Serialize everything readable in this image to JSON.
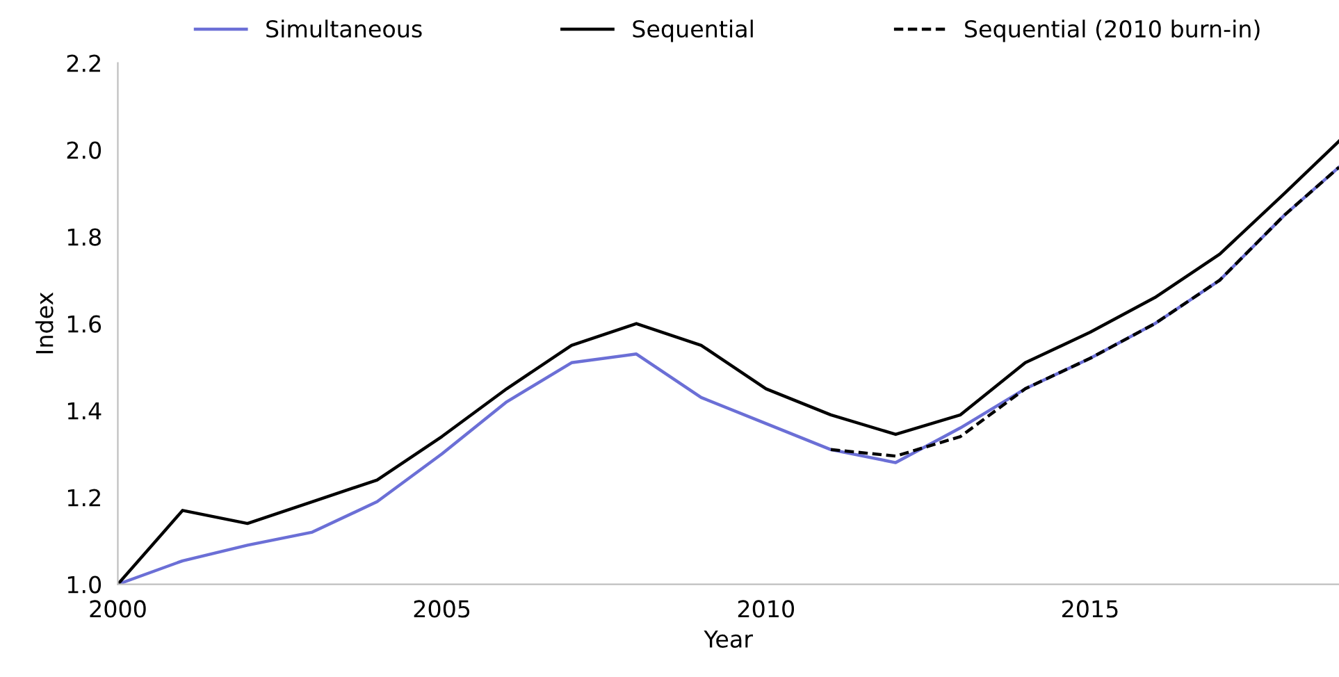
{
  "chart_data": {
    "type": "line",
    "xlabel": "Year",
    "ylabel": "Index",
    "xlim": [
      2000,
      2018.84
    ],
    "xticks": [
      2000,
      2005,
      2010,
      2015
    ],
    "ylim": [
      1.0,
      2.2
    ],
    "yticks": [
      {
        "value": 1.0,
        "label": "1.0"
      },
      {
        "value": 1.2,
        "label": "1.2"
      },
      {
        "value": 1.4,
        "label": "1.4"
      },
      {
        "value": 1.6,
        "label": "1.6"
      },
      {
        "value": 1.8,
        "label": "1.8"
      },
      {
        "value": 2.0,
        "label": "2.0"
      },
      {
        "value": 2.2,
        "label": "2.2"
      }
    ],
    "grid": false,
    "legend": "top",
    "marker": "none",
    "series": [
      {
        "name": "Simultaneous",
        "color": "#6b6fd6",
        "line_style": "solid",
        "x": [
          2000,
          2001,
          2002,
          2003,
          2004,
          2005,
          2006,
          2007,
          2008,
          2009,
          2010,
          2011,
          2012,
          2013,
          2014,
          2015,
          2016,
          2017,
          2018,
          2018.84
        ],
        "values": [
          1.0,
          1.054,
          1.09,
          1.12,
          1.19,
          1.3,
          1.42,
          1.51,
          1.53,
          1.43,
          1.37,
          1.31,
          1.28,
          1.36,
          1.45,
          1.52,
          1.6,
          1.7,
          1.85,
          1.96
        ]
      },
      {
        "name": "Sequential",
        "color": "#000000",
        "line_style": "solid",
        "x": [
          2000,
          2001,
          2002,
          2003,
          2004,
          2005,
          2006,
          2007,
          2008,
          2009,
          2010,
          2011,
          2012,
          2013,
          2014,
          2015,
          2016,
          2017,
          2018,
          2018.84
        ],
        "values": [
          1.0,
          1.17,
          1.14,
          1.19,
          1.24,
          1.34,
          1.45,
          1.55,
          1.6,
          1.55,
          1.45,
          1.39,
          1.345,
          1.39,
          1.51,
          1.58,
          1.66,
          1.76,
          1.9,
          2.02
        ]
      },
      {
        "name": "Sequential (2010 burn-in)",
        "color": "#000000",
        "line_style": "dashed",
        "x": [
          2011,
          2012,
          2013,
          2014,
          2015,
          2016,
          2017,
          2018,
          2018.84
        ],
        "values": [
          1.31,
          1.295,
          1.34,
          1.45,
          1.52,
          1.6,
          1.7,
          1.85,
          1.96
        ]
      }
    ]
  }
}
